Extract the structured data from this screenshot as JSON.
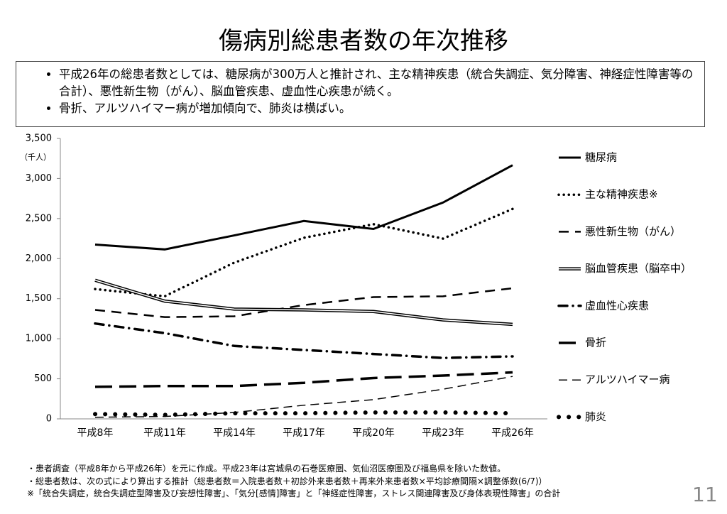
{
  "title": "傷病別総患者数の年次推移",
  "bullets": [
    "平成26年の総患者数としては、糖尿病が300万人と推計され、主な精神疾患（統合失調症、気分障害、神経症性障害等の合計）、悪性新生物（がん）、脳血管疾患、虚血性心疾患が続く。",
    "骨折、アルツハイマー病が増加傾向で、肺炎は横ばい。"
  ],
  "chart_data": {
    "type": "line",
    "unit_label": "（千人）",
    "categories": [
      "平成8年",
      "平成11年",
      "平成14年",
      "平成17年",
      "平成20年",
      "平成23年",
      "平成26年"
    ],
    "series": [
      {
        "name": "糖尿病",
        "color": "#000000",
        "values": [
          2175,
          2115,
          2290,
          2470,
          2370,
          2700,
          3166
        ]
      },
      {
        "name": "主な精神疾患※",
        "color": "#000000",
        "values": [
          1620,
          1530,
          1950,
          2260,
          2430,
          2250,
          2620
        ]
      },
      {
        "name": "悪性新生物（がん）",
        "color": "#000000",
        "values": [
          1360,
          1270,
          1280,
          1420,
          1520,
          1530,
          1630
        ]
      },
      {
        "name": "脳血管疾患（脳卒中）",
        "color": "#000000",
        "values": [
          1730,
          1470,
          1370,
          1360,
          1340,
          1235,
          1180
        ]
      },
      {
        "name": "虚血性心疾患",
        "color": "#000000",
        "values": [
          1190,
          1070,
          910,
          860,
          810,
          760,
          780
        ]
      },
      {
        "name": "骨折",
        "color": "#000000",
        "values": [
          400,
          410,
          410,
          450,
          510,
          540,
          580
        ]
      },
      {
        "name": "アルツハイマー病",
        "color": "#000000",
        "values": [
          20,
          30,
          80,
          170,
          240,
          370,
          530
        ]
      },
      {
        "name": "肺炎",
        "color": "#000000",
        "values": [
          60,
          50,
          70,
          70,
          80,
          80,
          70
        ]
      }
    ],
    "ylim": [
      0,
      3500
    ],
    "yticks": [
      0,
      {
        "value": 500,
        "label": "500"
      },
      {
        "value": 1000,
        "label": "1,000"
      },
      {
        "value": 1500,
        "label": "1,500"
      },
      {
        "value": 2000,
        "label": "2,000"
      },
      {
        "value": 2500,
        "label": "2,500"
      },
      {
        "value": 3000,
        "label": "3,000"
      },
      {
        "value": 3500,
        "label": "3,500"
      }
    ]
  },
  "notes": [
    "・患者調査（平成8年から平成26年）を元に作成。平成23年は宮城県の石巻医療圏、気仙沼医療圏及び福島県を除いた数値。",
    "・総患者数は、次の式により算出する推計（総患者数＝入院患者数＋初診外来患者数＋再来外来患者数×平均診療間隔×調整係数(6/7)）",
    "※「統合失調症，統合失調症型障害及び妄想性障害」、「気分[感情]障害」と「神経症性障害，ストレス関連障害及び身体表現性障害」の合計"
  ],
  "page_number": "11"
}
